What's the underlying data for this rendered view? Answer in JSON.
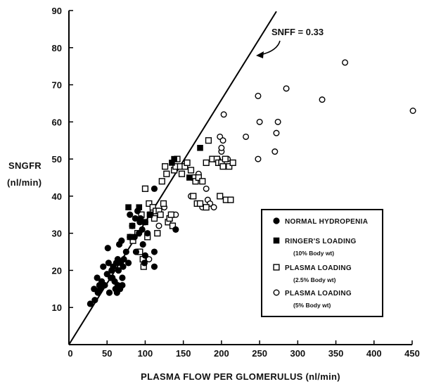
{
  "chart_data": {
    "type": "scatter",
    "title": "",
    "xlabel": "PLASMA FLOW PER GLOMERULUS (nl/min)",
    "ylabel_line1": "SNGFR",
    "ylabel_line2": "(nl/min)",
    "xlim": [
      0,
      450
    ],
    "ylim": [
      0,
      90
    ],
    "x_ticks": [
      50,
      100,
      150,
      200,
      250,
      300,
      350,
      400,
      450
    ],
    "y_ticks": [
      10,
      20,
      30,
      40,
      50,
      60,
      70,
      80,
      90
    ],
    "grid": false,
    "legend_position": "bottom-right",
    "line": {
      "label": "SNFF = 0.33",
      "slope": 0.33,
      "x_range": [
        0,
        272
      ]
    },
    "series": [
      {
        "name": "NORMAL HYDROPENIA",
        "marker": "filled-circle",
        "points": [
          [
            28,
            11
          ],
          [
            34,
            12
          ],
          [
            33,
            15
          ],
          [
            37,
            18
          ],
          [
            40,
            16
          ],
          [
            38,
            14
          ],
          [
            41,
            15
          ],
          [
            43,
            17
          ],
          [
            45,
            21
          ],
          [
            47,
            16
          ],
          [
            50,
            19
          ],
          [
            51,
            26
          ],
          [
            52,
            22
          ],
          [
            53,
            14
          ],
          [
            55,
            18
          ],
          [
            56,
            20
          ],
          [
            57,
            18
          ],
          [
            58,
            21
          ],
          [
            60,
            17
          ],
          [
            61,
            15
          ],
          [
            62,
            22
          ],
          [
            63,
            14
          ],
          [
            64,
            16
          ],
          [
            64,
            23
          ],
          [
            65,
            20
          ],
          [
            66,
            27
          ],
          [
            67,
            15
          ],
          [
            68,
            22
          ],
          [
            69,
            28
          ],
          [
            70,
            16
          ],
          [
            70,
            18
          ],
          [
            71,
            21
          ],
          [
            72,
            23
          ],
          [
            75,
            25
          ],
          [
            78,
            22
          ],
          [
            80,
            29
          ],
          [
            80,
            35
          ],
          [
            83,
            32
          ],
          [
            86,
            29
          ],
          [
            87,
            34
          ],
          [
            88,
            25
          ],
          [
            90,
            36
          ],
          [
            92,
            30
          ],
          [
            93,
            33
          ],
          [
            94,
            34
          ],
          [
            96,
            31
          ],
          [
            97,
            27
          ],
          [
            99,
            22
          ],
          [
            100,
            24
          ],
          [
            100,
            33
          ],
          [
            103,
            30
          ],
          [
            112,
            42
          ],
          [
            112,
            25
          ],
          [
            112,
            21
          ],
          [
            140,
            31
          ]
        ]
      },
      {
        "name": "RINGER'S LOADING",
        "sublabel": "(10% Body wt)",
        "marker": "filled-square",
        "points": [
          [
            78,
            37
          ],
          [
            80,
            29
          ],
          [
            83,
            32
          ],
          [
            92,
            37
          ],
          [
            100,
            33
          ],
          [
            106,
            35
          ],
          [
            135,
            49
          ],
          [
            138,
            50
          ],
          [
            158,
            45
          ],
          [
            172,
            53
          ]
        ]
      },
      {
        "name": "PLASMA LOADING",
        "sublabel": "(2.5% Body wt)",
        "marker": "open-square",
        "points": [
          [
            84,
            28
          ],
          [
            90,
            30
          ],
          [
            93,
            25
          ],
          [
            95,
            35
          ],
          [
            97,
            23
          ],
          [
            98,
            21
          ],
          [
            100,
            42
          ],
          [
            103,
            29
          ],
          [
            105,
            38
          ],
          [
            107,
            35
          ],
          [
            110,
            37
          ],
          [
            112,
            34
          ],
          [
            114,
            36
          ],
          [
            116,
            30
          ],
          [
            118,
            36
          ],
          [
            120,
            35
          ],
          [
            122,
            44
          ],
          [
            124,
            38
          ],
          [
            126,
            48
          ],
          [
            128,
            46
          ],
          [
            130,
            33
          ],
          [
            132,
            34
          ],
          [
            134,
            35
          ],
          [
            136,
            32
          ],
          [
            138,
            47
          ],
          [
            140,
            48
          ],
          [
            142,
            50
          ],
          [
            146,
            48
          ],
          [
            148,
            46
          ],
          [
            152,
            48
          ],
          [
            155,
            49
          ],
          [
            160,
            47
          ],
          [
            163,
            40
          ],
          [
            165,
            45
          ],
          [
            166,
            44
          ],
          [
            168,
            38
          ],
          [
            170,
            45
          ],
          [
            172,
            38
          ],
          [
            175,
            44
          ],
          [
            180,
            37
          ],
          [
            180,
            49
          ],
          [
            183,
            55
          ],
          [
            188,
            50
          ],
          [
            194,
            50
          ],
          [
            196,
            49
          ],
          [
            198,
            40
          ],
          [
            200,
            49
          ],
          [
            202,
            48
          ],
          [
            205,
            50
          ],
          [
            206,
            39
          ],
          [
            210,
            48
          ],
          [
            212,
            39
          ],
          [
            215,
            49
          ]
        ]
      },
      {
        "name": "PLASMA LOADING",
        "sublabel": "(5% Body wt)",
        "marker": "open-circle",
        "points": [
          [
            105,
            23
          ],
          [
            110,
            36
          ],
          [
            118,
            32
          ],
          [
            125,
            37
          ],
          [
            140,
            35
          ],
          [
            160,
            40
          ],
          [
            165,
            45
          ],
          [
            170,
            46
          ],
          [
            175,
            37
          ],
          [
            180,
            42
          ],
          [
            182,
            39
          ],
          [
            185,
            38
          ],
          [
            190,
            37
          ],
          [
            195,
            50
          ],
          [
            198,
            56
          ],
          [
            200,
            52
          ],
          [
            200,
            53
          ],
          [
            202,
            55
          ],
          [
            203,
            62
          ],
          [
            205,
            48
          ],
          [
            208,
            50
          ],
          [
            232,
            56
          ],
          [
            248,
            50
          ],
          [
            248,
            67
          ],
          [
            250,
            60
          ],
          [
            270,
            52
          ],
          [
            272,
            57
          ],
          [
            274,
            60
          ],
          [
            285,
            69
          ],
          [
            332,
            66
          ],
          [
            362,
            76
          ],
          [
            451,
            63
          ]
        ]
      }
    ]
  }
}
